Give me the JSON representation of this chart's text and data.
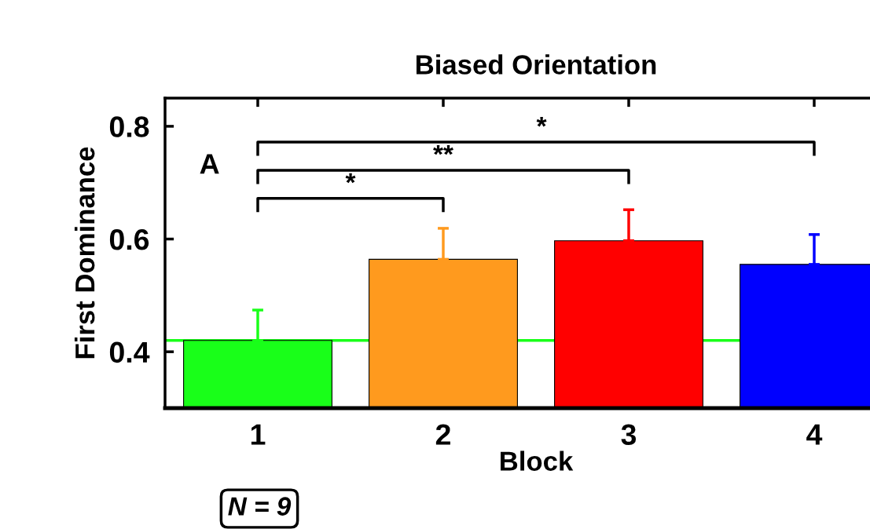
{
  "chart_data": {
    "type": "bar",
    "title": "Biased Orientation",
    "xlabel": "Block",
    "ylabel": "First Dominance",
    "categories": [
      "1",
      "2",
      "3",
      "4"
    ],
    "values": [
      0.42,
      0.564,
      0.597,
      0.555
    ],
    "colors": [
      "#19ff19",
      "#ff9a1e",
      "#ff0000",
      "#0000ff"
    ],
    "errors": [
      [
        0.42,
        0.474
      ],
      [
        0.564,
        0.619
      ],
      [
        0.597,
        0.652
      ],
      [
        0.555,
        0.608
      ]
    ],
    "ylim": [
      0.3,
      0.85
    ],
    "yticks": [
      0.4,
      0.6,
      0.8
    ],
    "ref_lines": [
      {
        "axis": "y",
        "value": 0.42,
        "color": "#19ff19"
      }
    ],
    "annotations": [
      "A",
      "*",
      "**",
      "*",
      "N = 9"
    ],
    "grid": false
  }
}
